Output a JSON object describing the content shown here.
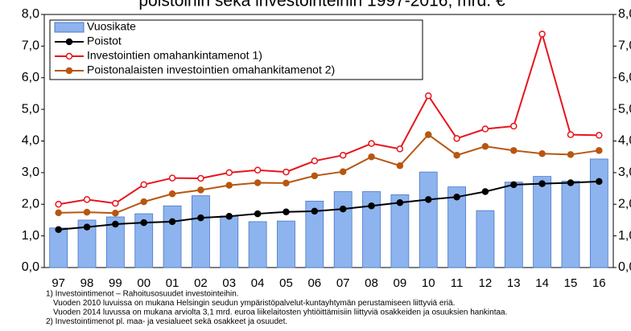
{
  "chart_data": {
    "type": "bar-line",
    "title": "poistoihin sekä investointeihin 1997-2016, mrd. €",
    "categories": [
      "97",
      "98",
      "99",
      "00",
      "01",
      "02",
      "03",
      "04",
      "05",
      "06",
      "07",
      "08",
      "09",
      "10",
      "11",
      "12",
      "13",
      "14",
      "15",
      "16"
    ],
    "series": [
      {
        "name": "Vuosikate",
        "type": "bar",
        "color": "#8db4ee",
        "values": [
          1.25,
          1.5,
          1.6,
          1.7,
          1.95,
          2.27,
          1.63,
          1.45,
          1.47,
          2.1,
          2.4,
          2.4,
          2.3,
          3.02,
          2.55,
          1.8,
          2.7,
          2.88,
          2.73,
          3.43
        ]
      },
      {
        "name": "Poistot",
        "type": "line",
        "color": "#000000",
        "values": [
          1.2,
          1.28,
          1.37,
          1.42,
          1.45,
          1.57,
          1.62,
          1.7,
          1.76,
          1.78,
          1.85,
          1.95,
          2.05,
          2.15,
          2.23,
          2.4,
          2.62,
          2.65,
          2.68,
          2.72
        ]
      },
      {
        "name": "Investointien omahankintamenot  1)",
        "type": "line",
        "color": "#e8141c",
        "values": [
          2.0,
          2.15,
          2.03,
          2.62,
          2.83,
          2.82,
          3.0,
          3.08,
          3.02,
          3.37,
          3.55,
          3.92,
          3.75,
          5.43,
          4.08,
          4.38,
          4.47,
          7.38,
          4.2,
          4.18
        ]
      },
      {
        "name": "Poistonalaisten investointien omahankitamenot 2)",
        "type": "line",
        "color": "#b8560f",
        "values": [
          1.73,
          1.75,
          1.72,
          2.08,
          2.33,
          2.45,
          2.6,
          2.68,
          2.67,
          2.9,
          3.03,
          3.5,
          3.22,
          4.2,
          3.55,
          3.83,
          3.7,
          3.6,
          3.57,
          3.7
        ]
      }
    ],
    "ylim": [
      0,
      8
    ],
    "yticks": [
      {
        "value": 0,
        "label": "0,0"
      },
      {
        "value": 1,
        "label": "1,0"
      },
      {
        "value": 2,
        "label": "2,0"
      },
      {
        "value": 3,
        "label": "3,0"
      },
      {
        "value": 4,
        "label": "4,0"
      },
      {
        "value": 5,
        "label": "5,0"
      },
      {
        "value": 6,
        "label": "6,0"
      },
      {
        "value": 7,
        "label": "7,0"
      },
      {
        "value": 8,
        "label": "8,0"
      }
    ],
    "y2lim": [
      0,
      8
    ],
    "y2ticks": [
      {
        "value": 0,
        "label": "0,0"
      },
      {
        "value": 1,
        "label": "1,0"
      },
      {
        "value": 2,
        "label": "2,0"
      },
      {
        "value": 3,
        "label": "3,0"
      },
      {
        "value": 4,
        "label": "4,0"
      },
      {
        "value": 5,
        "label": "5,0"
      },
      {
        "value": 6,
        "label": "6,0"
      },
      {
        "value": 7,
        "label": "7,0"
      },
      {
        "value": 8,
        "label": "8,0"
      }
    ],
    "grid": false,
    "legend": "top-left",
    "notes": [
      "1) Investointimenot – Rahoitusosuudet investointeihin.",
      "Vuoden 2010 luvuissa on mukana Helsingin seudun ympäristöpalvelut-kuntayhtymän perustamiseen liittyviä eriä.",
      "Vuoden 2014 luvussa on mukana arviolta 3,1 mrd. euroa  liikelaitosten yhtiöittämisiin liittyviä osakkeiden ja osuuksien hankintaa.",
      "2) Investointimenot pl. maa- ja vesialueet sekä osakkeet ja osuudet."
    ]
  }
}
